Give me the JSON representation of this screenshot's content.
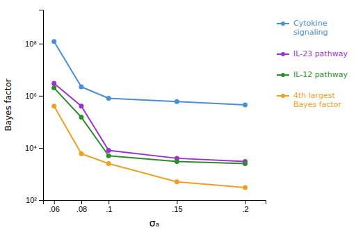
{
  "chart_data": {
    "type": "line",
    "xlabel": "σₐ",
    "ylabel": "Bayes factor",
    "x": [
      0.06,
      0.08,
      0.1,
      0.15,
      0.2
    ],
    "series": [
      {
        "name": "Cytokine\nsignaling",
        "color": "#4a8fd4",
        "values": [
          120000000.0,
          2200000.0,
          800000.0,
          600000.0,
          450000.0
        ]
      },
      {
        "name": "IL-23 pathway",
        "color": "#9933cc",
        "values": [
          3000000.0,
          400000.0,
          8000,
          4000,
          3000
        ]
      },
      {
        "name": "IL-12 pathway",
        "color": "#2e8b2e",
        "values": [
          2000000.0,
          150000.0,
          5000,
          3000,
          2500
        ]
      },
      {
        "name": "4th largest\nBayes factor",
        "color": "#f0a020",
        "values": [
          400000.0,
          6000,
          2500,
          500,
          300
        ]
      }
    ],
    "xlim": [
      0.052,
      0.215
    ],
    "xticks": [
      {
        "value": 0.06,
        "label": ".06"
      },
      {
        "value": 0.08,
        "label": ".08"
      },
      {
        "value": 0.1,
        "label": ".1"
      },
      {
        "value": 0.15,
        "label": ".15"
      },
      {
        "value": 0.2,
        "label": ".2"
      }
    ],
    "ylim": [
      100,
      2000000000.0
    ],
    "yticks": [
      {
        "value": 100,
        "label": "10²"
      },
      {
        "value": 10000,
        "label": "10⁴"
      },
      {
        "value": 1000000,
        "label": "10⁶"
      },
      {
        "value": 100000000,
        "label": "10⁸"
      }
    ],
    "log": "y",
    "grid": false,
    "legend": "right",
    "marker": "circle"
  }
}
